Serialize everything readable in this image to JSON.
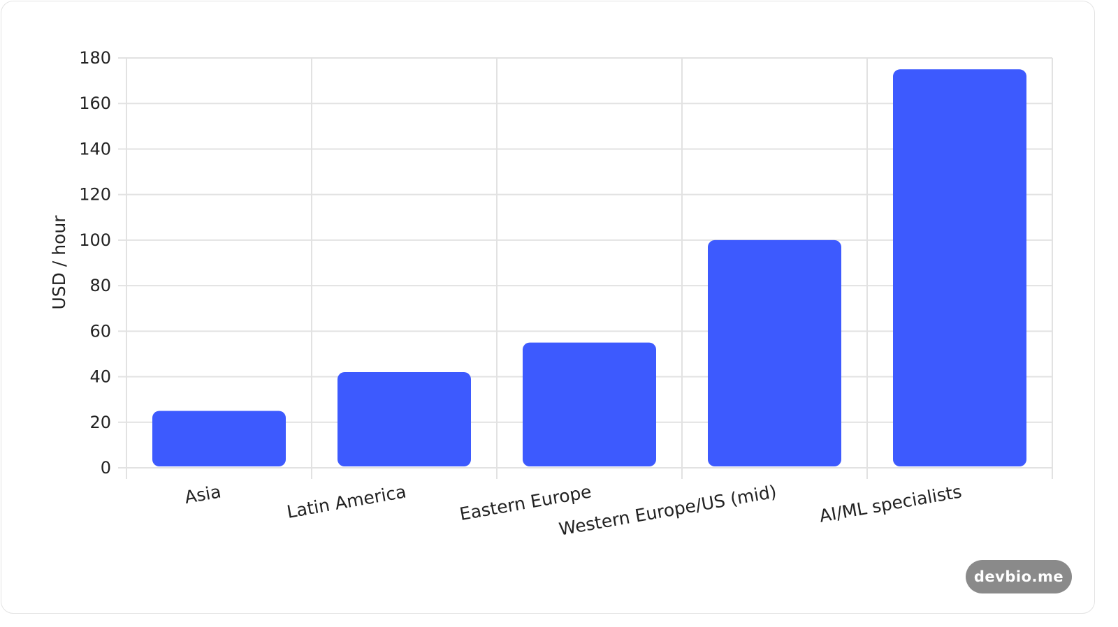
{
  "chart_data": {
    "type": "bar",
    "categories": [
      "Asia",
      "Latin America",
      "Eastern Europe",
      "Western Europe/US (mid)",
      "AI/ML specialists"
    ],
    "values": [
      25,
      42,
      55,
      100,
      175
    ],
    "ylabel": "USD / hour",
    "xlabel": "",
    "ylim": [
      0,
      180
    ],
    "yticks": [
      0,
      20,
      40,
      60,
      80,
      100,
      120,
      140,
      160,
      180
    ],
    "grid": true,
    "bar_color": "#3d5afe",
    "grid_color": "#e2e2e2"
  },
  "watermark": "devbio.me"
}
